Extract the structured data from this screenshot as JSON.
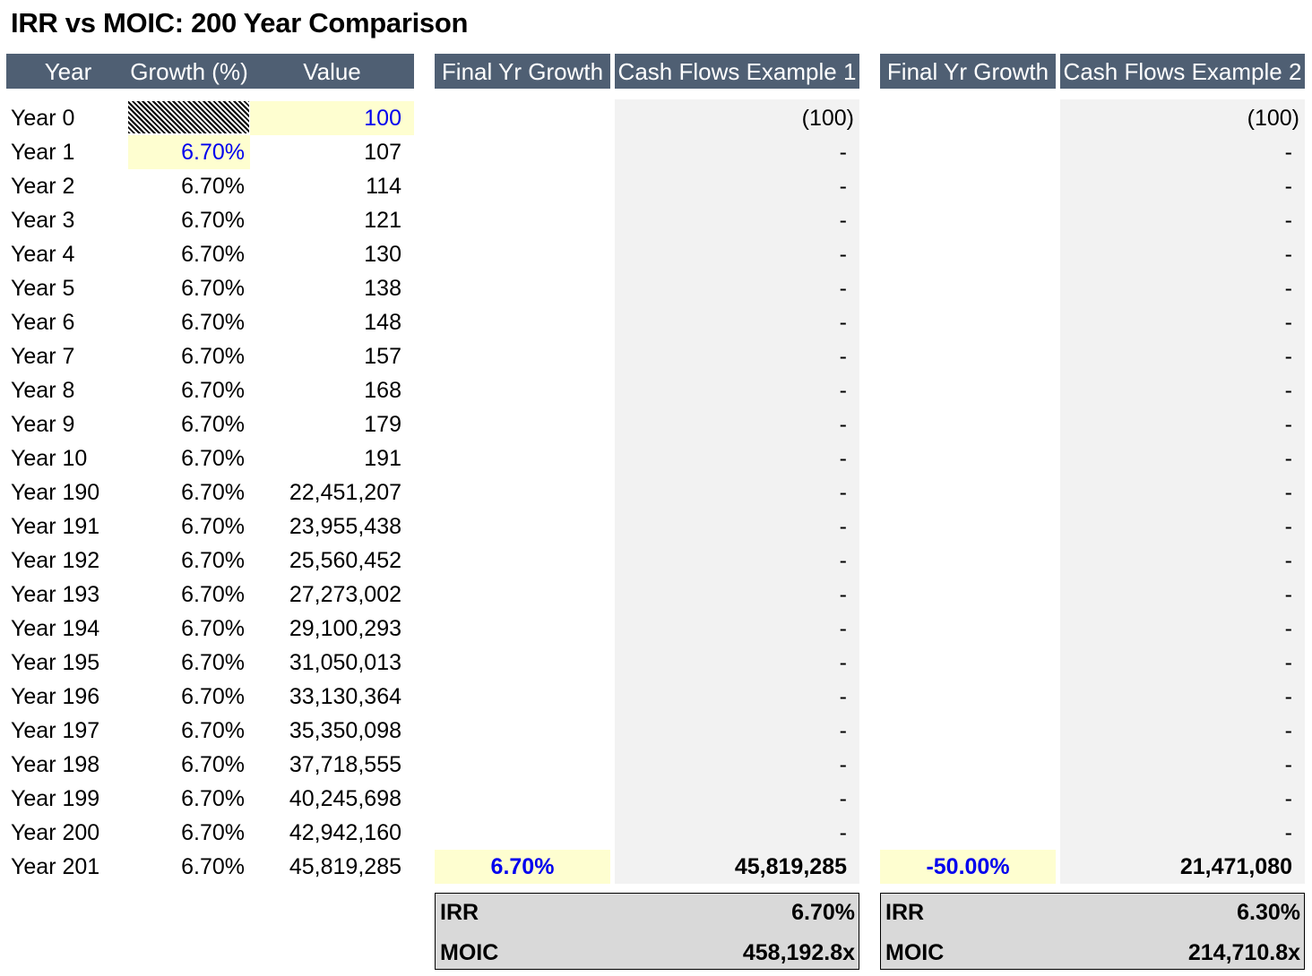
{
  "title": "IRR vs MOIC: 200 Year Comparison",
  "headers": {
    "year": "Year",
    "growth": "Growth (%)",
    "value": "Value",
    "final_growth_1": "Final Yr Growth",
    "cash_flows_1": "Cash Flows Example 1",
    "final_growth_2": "Final Yr Growth",
    "cash_flows_2": "Cash Flows Example 2"
  },
  "rows": [
    {
      "year": "Year 0",
      "growth": "",
      "value": "100",
      "cf1": "(100)",
      "cf2": "(100)"
    },
    {
      "year": "Year 1",
      "growth": "6.70%",
      "value": "107",
      "cf1": "-",
      "cf2": "-"
    },
    {
      "year": "Year 2",
      "growth": "6.70%",
      "value": "114",
      "cf1": "-",
      "cf2": "-"
    },
    {
      "year": "Year 3",
      "growth": "6.70%",
      "value": "121",
      "cf1": "-",
      "cf2": "-"
    },
    {
      "year": "Year 4",
      "growth": "6.70%",
      "value": "130",
      "cf1": "-",
      "cf2": "-"
    },
    {
      "year": "Year 5",
      "growth": "6.70%",
      "value": "138",
      "cf1": "-",
      "cf2": "-"
    },
    {
      "year": "Year 6",
      "growth": "6.70%",
      "value": "148",
      "cf1": "-",
      "cf2": "-"
    },
    {
      "year": "Year 7",
      "growth": "6.70%",
      "value": "157",
      "cf1": "-",
      "cf2": "-"
    },
    {
      "year": "Year 8",
      "growth": "6.70%",
      "value": "168",
      "cf1": "-",
      "cf2": "-"
    },
    {
      "year": "Year 9",
      "growth": "6.70%",
      "value": "179",
      "cf1": "-",
      "cf2": "-"
    },
    {
      "year": "Year 10",
      "growth": "6.70%",
      "value": "191",
      "cf1": "-",
      "cf2": "-"
    },
    {
      "year": "Year 190",
      "growth": "6.70%",
      "value": "22,451,207",
      "cf1": "-",
      "cf2": "-"
    },
    {
      "year": "Year 191",
      "growth": "6.70%",
      "value": "23,955,438",
      "cf1": "-",
      "cf2": "-"
    },
    {
      "year": "Year 192",
      "growth": "6.70%",
      "value": "25,560,452",
      "cf1": "-",
      "cf2": "-"
    },
    {
      "year": "Year 193",
      "growth": "6.70%",
      "value": "27,273,002",
      "cf1": "-",
      "cf2": "-"
    },
    {
      "year": "Year 194",
      "growth": "6.70%",
      "value": "29,100,293",
      "cf1": "-",
      "cf2": "-"
    },
    {
      "year": "Year 195",
      "growth": "6.70%",
      "value": "31,050,013",
      "cf1": "-",
      "cf2": "-"
    },
    {
      "year": "Year 196",
      "growth": "6.70%",
      "value": "33,130,364",
      "cf1": "-",
      "cf2": "-"
    },
    {
      "year": "Year 197",
      "growth": "6.70%",
      "value": "35,350,098",
      "cf1": "-",
      "cf2": "-"
    },
    {
      "year": "Year 198",
      "growth": "6.70%",
      "value": "37,718,555",
      "cf1": "-",
      "cf2": "-"
    },
    {
      "year": "Year 199",
      "growth": "6.70%",
      "value": "40,245,698",
      "cf1": "-",
      "cf2": "-"
    },
    {
      "year": "Year 200",
      "growth": "6.70%",
      "value": "42,942,160",
      "cf1": "-",
      "cf2": "-"
    },
    {
      "year": "Year 201",
      "growth": "6.70%",
      "value": "45,819,285",
      "final_growth_1": "6.70%",
      "cf1": "45,819,285",
      "final_growth_2": "-50.00%",
      "cf2": "21,471,080"
    }
  ],
  "summary_1": {
    "irr_label": "IRR",
    "irr_value": "6.70%",
    "moic_label": "MOIC",
    "moic_value": "458,192.8x"
  },
  "summary_2": {
    "irr_label": "IRR",
    "irr_value": "6.30%",
    "moic_label": "MOIC",
    "moic_value": "214,710.8x"
  },
  "colors": {
    "header_bg": "#4f5f73",
    "input_blue": "#0000ee",
    "input_yellow": "#fefed0",
    "grey_fill": "#f2f2f2",
    "summary_fill": "#d9d9d9"
  }
}
